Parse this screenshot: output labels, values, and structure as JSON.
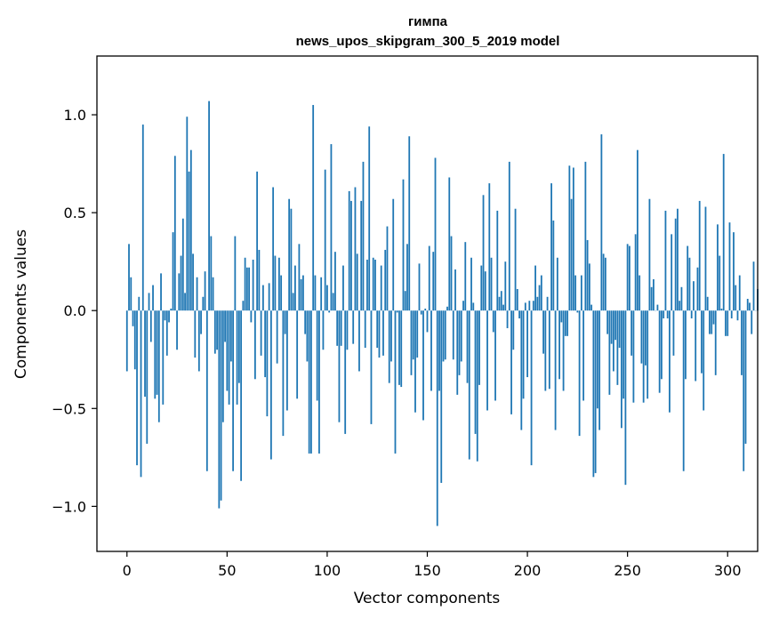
{
  "chart_data": {
    "type": "bar",
    "title": "гимпа",
    "subtitle": "news_upos_skipgram_300_5_2019 model",
    "xlabel": "Vector components",
    "ylabel": "Components values",
    "xlim": [
      -15,
      315
    ],
    "ylim": [
      -1.23,
      1.3
    ],
    "xticks": [
      0,
      50,
      100,
      150,
      200,
      250,
      300
    ],
    "xtick_labels": [
      "0",
      "50",
      "100",
      "150",
      "200",
      "250",
      "300"
    ],
    "yticks": [
      -1.0,
      -0.5,
      0.0,
      0.5,
      1.0
    ],
    "ytick_labels": [
      "−1.0",
      "−0.5",
      "0.0",
      "0.5",
      "1.0"
    ],
    "grid": false,
    "bar_color": "#1f77b4",
    "values": [
      -0.31,
      0.34,
      0.17,
      -0.08,
      -0.3,
      -0.79,
      0.07,
      -0.85,
      0.95,
      -0.44,
      -0.68,
      0.09,
      -0.16,
      0.13,
      -0.45,
      -0.43,
      -0.57,
      0.19,
      -0.48,
      -0.05,
      -0.23,
      -0.06,
      0.01,
      0.4,
      0.79,
      -0.2,
      0.19,
      0.28,
      0.47,
      0.09,
      0.99,
      0.71,
      0.82,
      0.29,
      -0.24,
      0.17,
      -0.31,
      -0.12,
      0.07,
      0.2,
      -0.82,
      1.07,
      0.38,
      0.17,
      -0.22,
      -0.2,
      -1.01,
      -0.97,
      -0.57,
      -0.16,
      -0.41,
      -0.48,
      -0.26,
      -0.82,
      0.38,
      -0.48,
      -0.37,
      -0.87,
      0.05,
      0.27,
      0.22,
      0.22,
      -0.06,
      0.26,
      -0.35,
      0.71,
      0.31,
      -0.23,
      0.13,
      -0.34,
      -0.54,
      0.14,
      -0.76,
      0.63,
      0.28,
      -0.27,
      0.27,
      0.18,
      -0.64,
      -0.12,
      -0.51,
      0.57,
      0.52,
      0.09,
      0.23,
      -0.45,
      0.34,
      0.16,
      0.18,
      -0.12,
      -0.26,
      -0.73,
      -0.73,
      1.05,
      0.18,
      -0.46,
      -0.73,
      0.17,
      -0.2,
      0.72,
      0.13,
      -0.01,
      0.85,
      0.09,
      0.3,
      -0.18,
      -0.57,
      -0.18,
      0.23,
      -0.63,
      -0.2,
      0.61,
      0.56,
      -0.17,
      0.63,
      0.29,
      -0.31,
      0.56,
      0.76,
      -0.19,
      0.26,
      0.94,
      -0.58,
      0.27,
      0.26,
      -0.19,
      -0.24,
      0.23,
      -0.23,
      0.31,
      0.43,
      -0.37,
      -0.26,
      0.57,
      -0.73,
      -0.01,
      -0.38,
      -0.39,
      0.67,
      0.1,
      0.34,
      0.89,
      -0.33,
      -0.25,
      -0.52,
      -0.24,
      0.24,
      -0.02,
      -0.56,
      0.01,
      -0.11,
      0.33,
      -0.41,
      0.3,
      0.78,
      -1.1,
      -0.41,
      -0.88,
      -0.26,
      -0.25,
      0.02,
      0.68,
      0.38,
      -0.25,
      0.21,
      -0.43,
      -0.33,
      -0.26,
      0.05,
      0.35,
      -0.37,
      -0.76,
      0.27,
      0.04,
      -0.63,
      -0.77,
      -0.38,
      0.23,
      0.59,
      0.2,
      -0.51,
      0.65,
      0.27,
      -0.11,
      -0.46,
      0.51,
      0.07,
      0.1,
      0.03,
      0.25,
      -0.09,
      0.76,
      -0.53,
      -0.2,
      0.52,
      0.11,
      -0.04,
      -0.61,
      -0.45,
      0.04,
      -0.34,
      0.05,
      -0.79,
      0.05,
      0.23,
      0.07,
      0.13,
      0.18,
      -0.22,
      -0.41,
      0.07,
      -0.4,
      0.65,
      0.46,
      -0.61,
      0.27,
      -0.35,
      -0.06,
      -0.41,
      -0.13,
      -0.13,
      0.74,
      0.57,
      0.73,
      0.18,
      -0.01,
      -0.64,
      0.18,
      -0.46,
      0.76,
      0.36,
      0.24,
      0.03,
      -0.85,
      -0.83,
      -0.5,
      -0.61,
      0.9,
      0.29,
      0.27,
      -0.12,
      -0.43,
      -0.17,
      -0.31,
      -0.15,
      -0.38,
      -0.19,
      -0.6,
      -0.45,
      -0.89,
      0.34,
      0.33,
      -0.23,
      -0.47,
      0.39,
      0.82,
      0.18,
      -0.27,
      -0.47,
      -0.28,
      -0.45,
      0.57,
      0.12,
      0.16,
      0.0,
      0.03,
      -0.42,
      -0.35,
      -0.04,
      0.51,
      -0.04,
      -0.52,
      0.39,
      -0.23,
      0.47,
      0.52,
      0.05,
      0.12,
      -0.82,
      -0.35,
      0.33,
      0.27,
      -0.04,
      0.15,
      -0.36,
      0.22,
      0.56,
      -0.32,
      -0.51,
      0.53,
      0.07,
      -0.12,
      -0.12,
      -0.07,
      -0.33,
      0.44,
      0.28,
      0.01,
      0.8,
      -0.13,
      -0.13,
      0.45,
      -0.04,
      0.4,
      0.13,
      -0.05,
      0.18,
      -0.33,
      -0.82,
      -0.68,
      0.06,
      0.04,
      -0.12,
      0.25,
      0.0,
      0.11
    ]
  }
}
